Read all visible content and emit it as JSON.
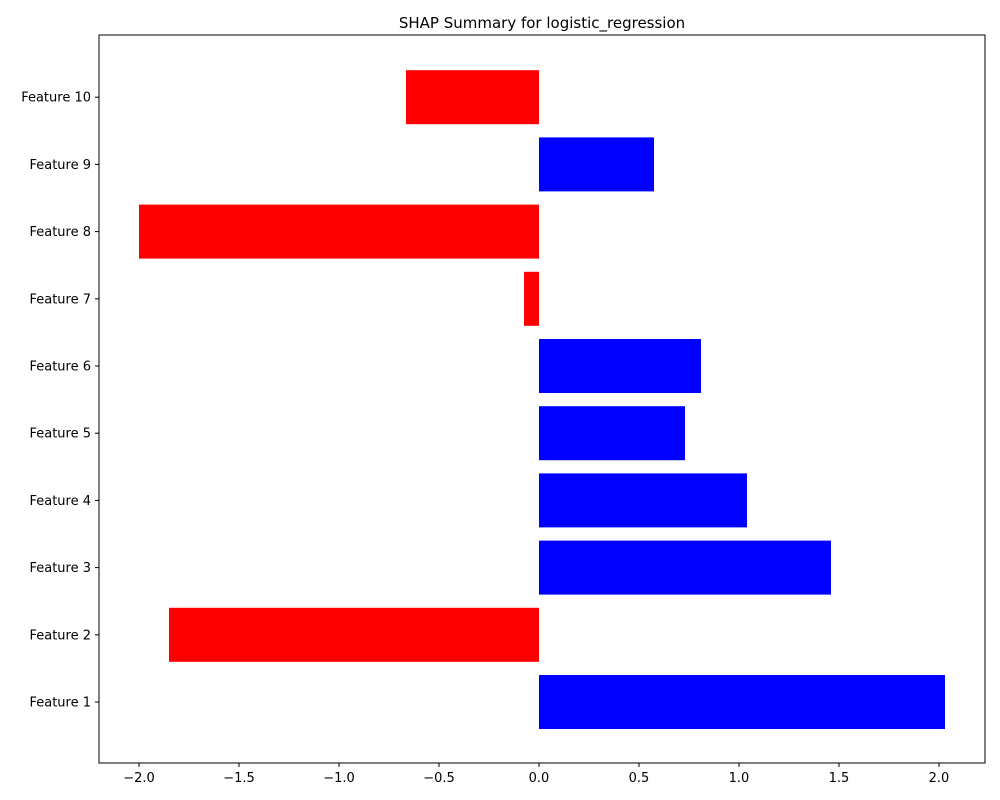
{
  "chart_data": {
    "type": "bar",
    "orientation": "horizontal",
    "title": "SHAP Summary for logistic_regression",
    "xlabel": "",
    "ylabel": "",
    "categories": [
      "Feature 1",
      "Feature 2",
      "Feature 3",
      "Feature 4",
      "Feature 5",
      "Feature 6",
      "Feature 7",
      "Feature 8",
      "Feature 9",
      "Feature 10"
    ],
    "values": [
      2.03,
      -1.85,
      1.46,
      1.04,
      0.73,
      0.81,
      -0.075,
      -2.0,
      0.575,
      -0.665
    ],
    "xlim": [
      -2.2,
      2.23
    ],
    "xticks": [
      -2.0,
      -1.5,
      -1.0,
      -0.5,
      0.0,
      0.5,
      1.0,
      1.5,
      2.0
    ],
    "xtick_labels": [
      "−2.0",
      "−1.5",
      "−1.0",
      "−0.5",
      "0.0",
      "0.5",
      "1.0",
      "1.5",
      "2.0"
    ],
    "colors": {
      "positive": "#0000ff",
      "negative": "#ff0000"
    },
    "grid": false,
    "legend": false
  }
}
